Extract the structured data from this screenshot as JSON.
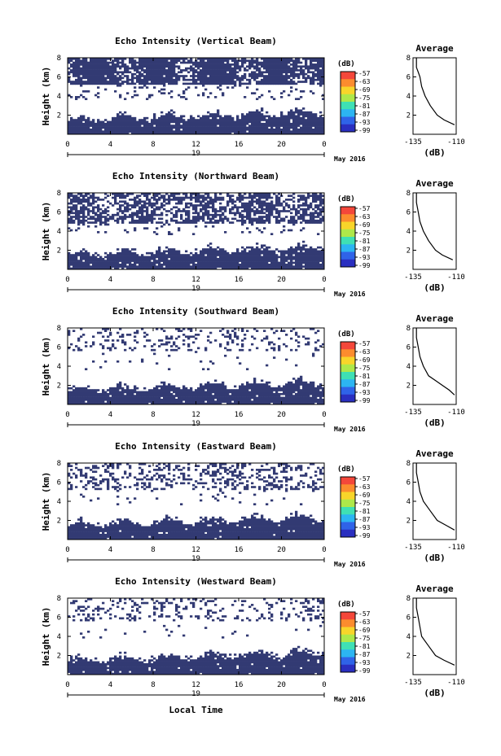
{
  "figure": {
    "xlabel": "Local Time",
    "colorbar_unit": "(dB)",
    "colorbar_ticks": [
      "-57",
      "-63",
      "-69",
      "-75",
      "-81",
      "-87",
      "-93",
      "-99"
    ],
    "colorbar_colors": [
      "#f4473a",
      "#fc8c2e",
      "#f8d52a",
      "#aee84a",
      "#3fe0b4",
      "#2cb5f2",
      "#2f63e8",
      "#2a2fc0"
    ],
    "map_color": "#323a73",
    "x_ticks": [
      "0",
      "4",
      "8",
      "12",
      "16",
      "20",
      "0"
    ],
    "date_day": "19",
    "date_label": "May 2016",
    "y_ticks": [
      "8",
      "6",
      "4",
      "2"
    ],
    "y_label": "Height (km)",
    "avg_title": "Average",
    "avg_xlabel": "(dB)",
    "avg_x_ticks": [
      "-135",
      "-110"
    ],
    "avg_y_ticks": [
      "8",
      "6",
      "4",
      "2"
    ]
  },
  "chart_data": [
    {
      "type": "heatmap",
      "title": "Echo Intensity (Vertical Beam)",
      "ylabel": "Height (km)",
      "x_range_hours": [
        0,
        24
      ],
      "y_range_km": [
        0,
        8
      ],
      "clim_db": [
        -99,
        -57
      ],
      "profile": [
        {
          "h": 8,
          "db": -133
        },
        {
          "h": 7,
          "db": -133
        },
        {
          "h": 6.5,
          "db": -132
        },
        {
          "h": 6,
          "db": -131
        },
        {
          "h": 5,
          "db": -130
        },
        {
          "h": 4,
          "db": -128
        },
        {
          "h": 3,
          "db": -125
        },
        {
          "h": 2,
          "db": -121
        },
        {
          "h": 1.5,
          "db": -117
        },
        {
          "h": 1,
          "db": -111
        }
      ]
    },
    {
      "type": "heatmap",
      "title": "Echo Intensity (Northward Beam)",
      "ylabel": "Height (km)",
      "x_range_hours": [
        0,
        24
      ],
      "y_range_km": [
        0,
        8
      ],
      "clim_db": [
        -99,
        -57
      ],
      "profile": [
        {
          "h": 8,
          "db": -133
        },
        {
          "h": 7,
          "db": -133
        },
        {
          "h": 6,
          "db": -132
        },
        {
          "h": 5,
          "db": -131
        },
        {
          "h": 4,
          "db": -129
        },
        {
          "h": 3,
          "db": -126
        },
        {
          "h": 2,
          "db": -122
        },
        {
          "h": 1.5,
          "db": -118
        },
        {
          "h": 1,
          "db": -112
        }
      ]
    },
    {
      "type": "heatmap",
      "title": "Echo Intensity (Southward Beam)",
      "ylabel": "Height (km)",
      "x_range_hours": [
        0,
        24
      ],
      "y_range_km": [
        0,
        8
      ],
      "clim_db": [
        -99,
        -57
      ],
      "profile": [
        {
          "h": 8,
          "db": -133
        },
        {
          "h": 7,
          "db": -133
        },
        {
          "h": 6,
          "db": -132
        },
        {
          "h": 5,
          "db": -131
        },
        {
          "h": 4,
          "db": -129
        },
        {
          "h": 3,
          "db": -126
        },
        {
          "h": 2.5,
          "db": -122
        },
        {
          "h": 2,
          "db": -118
        },
        {
          "h": 1.5,
          "db": -114
        },
        {
          "h": 1,
          "db": -111
        }
      ]
    },
    {
      "type": "heatmap",
      "title": "Echo Intensity (Eastward Beam)",
      "ylabel": "Height (km)",
      "x_range_hours": [
        0,
        24
      ],
      "y_range_km": [
        0,
        8
      ],
      "clim_db": [
        -99,
        -57
      ],
      "profile": [
        {
          "h": 8,
          "db": -133
        },
        {
          "h": 7,
          "db": -133
        },
        {
          "h": 6,
          "db": -132
        },
        {
          "h": 5,
          "db": -131
        },
        {
          "h": 4,
          "db": -129
        },
        {
          "h": 3,
          "db": -125
        },
        {
          "h": 2,
          "db": -121
        },
        {
          "h": 1.5,
          "db": -116
        },
        {
          "h": 1,
          "db": -111
        }
      ]
    },
    {
      "type": "heatmap",
      "title": "Echo Intensity (Westward Beam)",
      "ylabel": "Height (km)",
      "x_range_hours": [
        0,
        24
      ],
      "y_range_km": [
        0,
        8
      ],
      "clim_db": [
        -99,
        -57
      ],
      "profile": [
        {
          "h": 8,
          "db": -133
        },
        {
          "h": 7,
          "db": -133
        },
        {
          "h": 6,
          "db": -132
        },
        {
          "h": 5,
          "db": -131
        },
        {
          "h": 4,
          "db": -130
        },
        {
          "h": 3,
          "db": -126
        },
        {
          "h": 2,
          "db": -122
        },
        {
          "h": 1.5,
          "db": -117
        },
        {
          "h": 1,
          "db": -111
        }
      ]
    }
  ]
}
